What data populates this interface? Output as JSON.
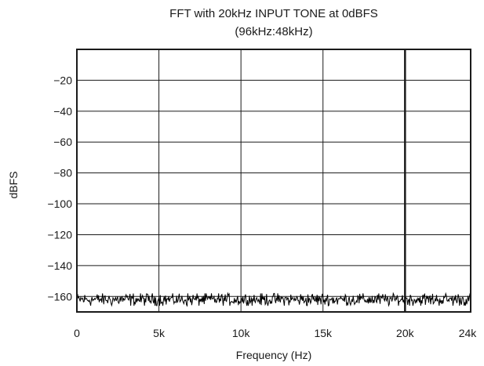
{
  "chart_data": {
    "type": "line",
    "title": "FFT with 20kHz INPUT TONE at 0dBFS",
    "subtitle": "(96kHz:48kHz)",
    "xlabel": "Frequency (Hz)",
    "ylabel": "dBFS",
    "xlim": [
      0,
      24000
    ],
    "ylim": [
      -170,
      0
    ],
    "x_ticks": [
      0,
      5000,
      10000,
      15000,
      20000,
      24000
    ],
    "x_tick_labels": [
      "0",
      "5k",
      "10k",
      "15k",
      "20k",
      "24k"
    ],
    "y_ticks": [
      -20,
      -40,
      -60,
      -80,
      -100,
      -120,
      -140,
      -160
    ],
    "y_tick_labels": [
      "−20",
      "−40",
      "−60",
      "−80",
      "−100",
      "−120",
      "−140",
      "−160"
    ],
    "grid": true,
    "marker_line_x": 20000,
    "series": [
      {
        "x_start": 0,
        "x_end": 24000,
        "noise_floor_mean": -162,
        "noise_floor_range": [
          -166,
          -158
        ],
        "color": "#000000"
      }
    ]
  }
}
